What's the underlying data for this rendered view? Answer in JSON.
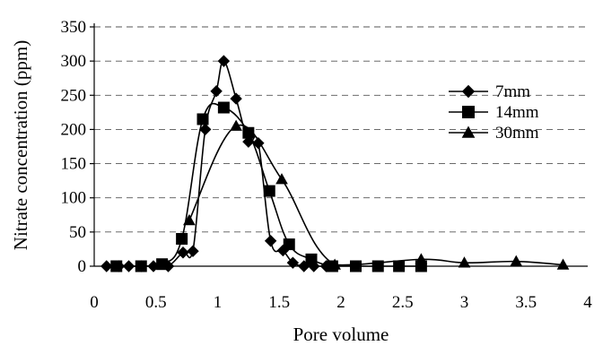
{
  "chart_data": {
    "type": "line",
    "xlabel": "Pore volume",
    "ylabel": "Nitrate concentration (ppm)",
    "xlim": [
      0,
      4
    ],
    "ylim": [
      0,
      350
    ],
    "x_ticks": [
      "0",
      "0.5",
      "1",
      "1.5",
      "2",
      "2.5",
      "3",
      "3.5",
      "4"
    ],
    "y_ticks": [
      "0",
      "50",
      "100",
      "150",
      "200",
      "250",
      "300",
      "350"
    ],
    "grid": true,
    "legend_position": "right",
    "series": [
      {
        "name": "7mm",
        "marker": "diamond",
        "points": [
          [
            0.1,
            0
          ],
          [
            0.2,
            0
          ],
          [
            0.28,
            0
          ],
          [
            0.38,
            0
          ],
          [
            0.48,
            0
          ],
          [
            0.6,
            0
          ],
          [
            0.72,
            20
          ],
          [
            0.8,
            22
          ],
          [
            0.9,
            200
          ],
          [
            0.99,
            256
          ],
          [
            1.05,
            300
          ],
          [
            1.15,
            245
          ],
          [
            1.25,
            182
          ],
          [
            1.33,
            180
          ],
          [
            1.43,
            37
          ],
          [
            1.53,
            23
          ],
          [
            1.61,
            5
          ],
          [
            1.7,
            0
          ],
          [
            1.78,
            0
          ],
          [
            1.88,
            0
          ]
        ]
      },
      {
        "name": "14mm",
        "marker": "square",
        "points": [
          [
            0.18,
            0
          ],
          [
            0.38,
            0
          ],
          [
            0.55,
            3
          ],
          [
            0.71,
            40
          ],
          [
            0.88,
            215
          ],
          [
            1.05,
            232
          ],
          [
            1.25,
            195
          ],
          [
            1.42,
            110
          ],
          [
            1.58,
            32
          ],
          [
            1.76,
            10
          ],
          [
            1.93,
            0
          ],
          [
            2.12,
            0
          ],
          [
            2.3,
            0
          ],
          [
            2.47,
            0
          ],
          [
            2.65,
            0
          ]
        ]
      },
      {
        "name": "30mm",
        "marker": "triangle",
        "points": [
          [
            0.77,
            67
          ],
          [
            1.15,
            205
          ],
          [
            1.52,
            127
          ],
          [
            1.95,
            2
          ],
          [
            2.65,
            10
          ],
          [
            3.0,
            5
          ],
          [
            3.42,
            7
          ],
          [
            3.8,
            2
          ]
        ]
      }
    ]
  }
}
